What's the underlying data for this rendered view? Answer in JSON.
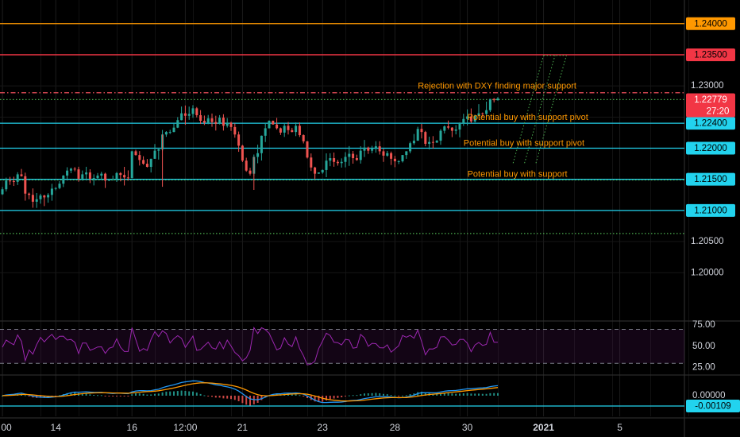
{
  "chart_data": {
    "type": "candlestick",
    "instrument_note": "EURUSD-style price chart with RSI and MACD panes",
    "price_axis": {
      "ylim": [
        1.1925,
        1.2438
      ],
      "tick_labels": [
        "1.23000",
        "1.20500",
        "1.20000"
      ],
      "tick_values": [
        1.23,
        1.205,
        1.2
      ]
    },
    "time_axis": {
      "labels": [
        "00",
        "14",
        "16",
        "12:00",
        "21",
        "23",
        "28",
        "30",
        "2021",
        "5"
      ],
      "label_x_index": [
        0,
        14,
        34,
        48,
        63,
        84,
        103,
        122,
        142,
        162
      ],
      "bold_labels": [
        "2021"
      ]
    },
    "current_price": {
      "value": "1.22779",
      "countdown": "27:20",
      "numeric": 1.22779
    },
    "horizontal_levels": [
      {
        "value": 1.24,
        "label": "1.24000",
        "color": "#ff9800",
        "style": "solid"
      },
      {
        "value": 1.235,
        "label": "1.23500",
        "color": "#f23645",
        "style": "solid"
      },
      {
        "value": 1.2289,
        "label": "",
        "color": "#f7525f",
        "style": "dashdot"
      },
      {
        "value": 1.2278,
        "label": "",
        "color": "#4caf50",
        "style": "dotted"
      },
      {
        "value": 1.224,
        "label": "1.22400",
        "color": "#22d3ee",
        "style": "solid"
      },
      {
        "value": 1.22,
        "label": "1.22000",
        "color": "#22d3ee",
        "style": "solid"
      },
      {
        "value": 1.215,
        "label": "1.21500",
        "color": "#22d3ee",
        "style": "solid"
      },
      {
        "value": 1.2149,
        "label": "",
        "color": "#4caf50",
        "style": "dotted"
      },
      {
        "value": 1.21,
        "label": "1.21000",
        "color": "#22d3ee",
        "style": "solid"
      },
      {
        "value": 1.2063,
        "label": "",
        "color": "#4caf50",
        "style": "dotted"
      }
    ],
    "annotations": [
      {
        "text": "Rejection with DXY finding major support",
        "x_index": 109,
        "price": 1.2296
      },
      {
        "text": "Potential buy with support pivot",
        "x_index": 122,
        "price": 1.2245
      },
      {
        "text": "Potential buy with support pivot",
        "x_index": 121,
        "price": 1.2204
      },
      {
        "text": "Potential buy with support",
        "x_index": 122,
        "price": 1.2154
      }
    ],
    "hidden_label": "1.2",
    "channel_projection": {
      "color": "#4caf50",
      "lines": [
        {
          "from": [
            134,
            1.2176
          ],
          "to": [
            142,
            1.2349
          ]
        },
        {
          "from": [
            137,
            1.2176
          ],
          "to": [
            145,
            1.2349
          ]
        },
        {
          "from": [
            140,
            1.2176
          ],
          "to": [
            148,
            1.2349
          ]
        }
      ]
    },
    "candle_closes": [
      1.2134,
      1.2148,
      1.2147,
      1.2146,
      1.2158,
      1.2155,
      1.2127,
      1.2125,
      1.2114,
      1.2118,
      1.2124,
      1.2121,
      1.2125,
      1.2135,
      1.2136,
      1.2143,
      1.2156,
      1.2164,
      1.2167,
      1.2166,
      1.2151,
      1.2158,
      1.2161,
      1.2151,
      1.2152,
      1.2156,
      1.2159,
      1.2148,
      1.2149,
      1.2151,
      1.216,
      1.2157,
      1.2153,
      1.2152,
      1.2195,
      1.2189,
      1.2181,
      1.2175,
      1.217,
      1.2183,
      1.2196,
      1.2198,
      1.2222,
      1.2226,
      1.2226,
      1.2233,
      1.2245,
      1.2256,
      1.2252,
      1.2255,
      1.2264,
      1.2253,
      1.2244,
      1.2241,
      1.2248,
      1.2242,
      1.2239,
      1.2249,
      1.2236,
      1.2241,
      1.2234,
      1.2222,
      1.2204,
      1.218,
      1.2164,
      1.2159,
      1.2186,
      1.2192,
      1.222,
      1.2232,
      1.2244,
      1.2238,
      1.2232,
      1.2225,
      1.2236,
      1.2229,
      1.2226,
      1.2236,
      1.2221,
      1.2211,
      1.2185,
      1.2169,
      1.2159,
      1.2161,
      1.2165,
      1.218,
      1.2184,
      1.2178,
      1.2176,
      1.2178,
      1.2186,
      1.2191,
      1.2184,
      1.2181,
      1.2196,
      1.2201,
      1.2196,
      1.2199,
      1.2203,
      1.2195,
      1.2188,
      1.2192,
      1.2183,
      1.2179,
      1.2179,
      1.2189,
      1.2195,
      1.2208,
      1.2212,
      1.2231,
      1.2226,
      1.2207,
      1.221,
      1.2209,
      1.2212,
      1.2228,
      1.2235,
      1.2233,
      1.2228,
      1.223,
      1.224,
      1.2247,
      1.2251,
      1.2243,
      1.2252,
      1.2256,
      1.2255,
      1.2261,
      1.2279,
      1.2277,
      1.228
    ],
    "rsi": {
      "ylim": [
        18,
        78
      ],
      "tick_labels": [
        "75.00",
        "50.00",
        "25.00"
      ],
      "tick_values": [
        75,
        50,
        25
      ],
      "band": [
        30,
        70
      ],
      "line_color": "#9c27b0"
    },
    "macd": {
      "tick_labels": [
        "0.00000"
      ],
      "current_value": "-0.00109",
      "macd_color": "#2196f3",
      "signal_color": "#ff9800"
    }
  }
}
